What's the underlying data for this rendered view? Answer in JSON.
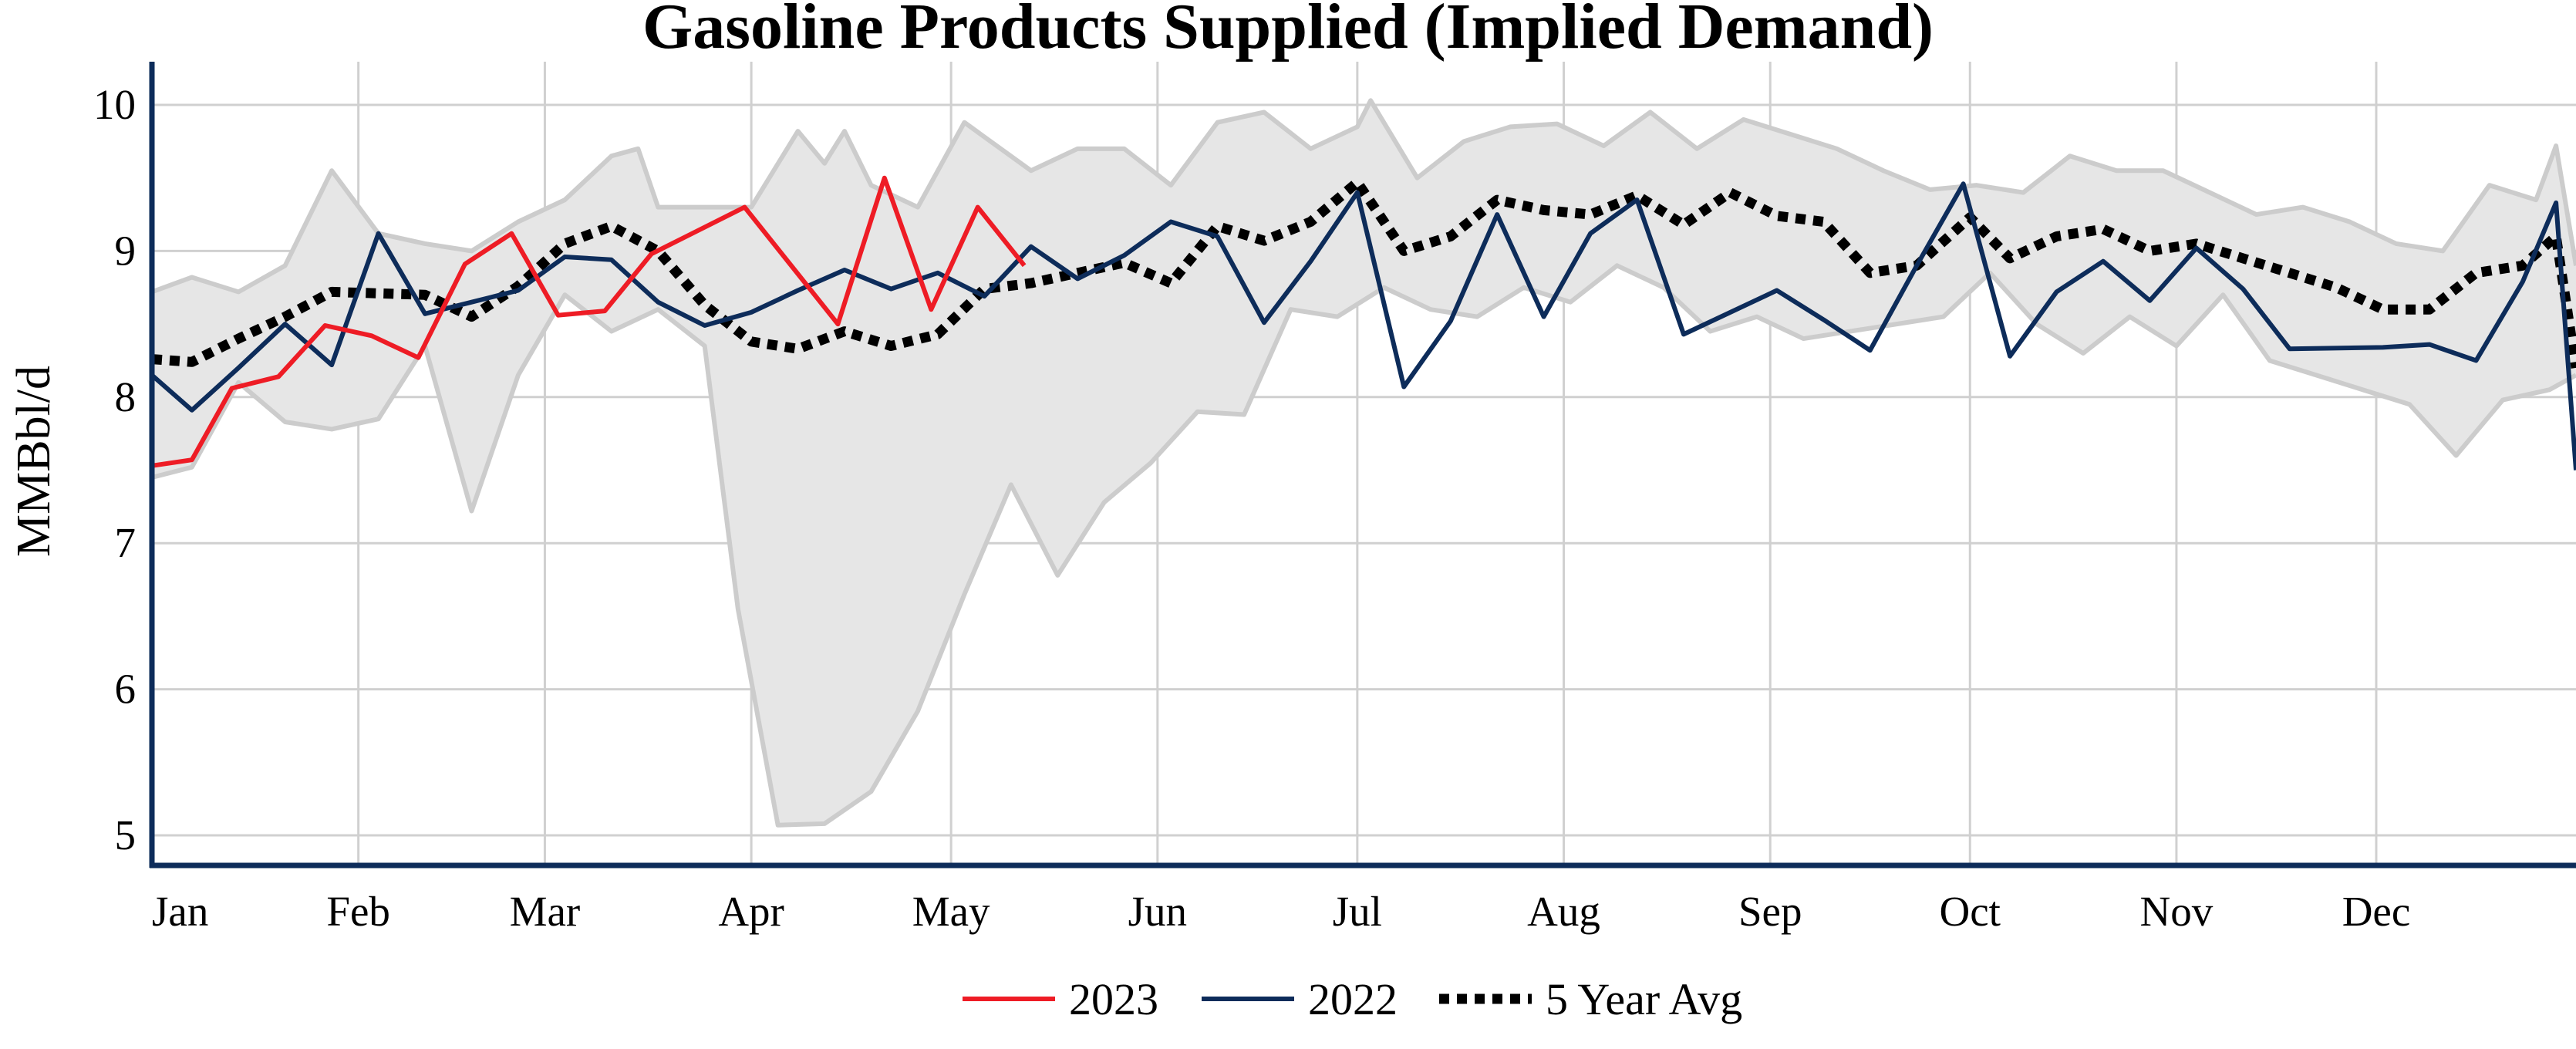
{
  "chart_data": {
    "type": "line",
    "title": "Gasoline Products Supplied (Implied Demand)",
    "xlabel": "",
    "ylabel": "MMBbl/d",
    "x_tick_labels": [
      "Jan",
      "Feb",
      "Mar",
      "Apr",
      "May",
      "Jun",
      "Jul",
      "Aug",
      "Sep",
      "Oct",
      "Nov",
      "Dec"
    ],
    "y_ticks": [
      5,
      6,
      7,
      8,
      9,
      10
    ],
    "ylim": [
      4.75,
      10.3
    ],
    "xlim_day_of_year": [
      1,
      365
    ],
    "grid": true,
    "legend": "bottom-center",
    "series": [
      {
        "name": "2023",
        "color": "#ee1c25",
        "style": "solid",
        "points": [
          {
            "x": "Jan 1",
            "y": 7.53
          },
          {
            "x": "Jan 7",
            "y": 7.57
          },
          {
            "x": "Jan 13",
            "y": 8.06
          },
          {
            "x": "Jan 20",
            "y": 8.14
          },
          {
            "x": "Jan 27",
            "y": 8.49
          },
          {
            "x": "Feb 3",
            "y": 8.42
          },
          {
            "x": "Feb 10",
            "y": 8.27
          },
          {
            "x": "Feb 17",
            "y": 8.91
          },
          {
            "x": "Feb 24",
            "y": 9.12
          },
          {
            "x": "Mar 3",
            "y": 8.56
          },
          {
            "x": "Mar 10",
            "y": 8.59
          },
          {
            "x": "Mar 17",
            "y": 8.98
          },
          {
            "x": "Mar 31",
            "y": 9.3
          },
          {
            "x": "Apr 14",
            "y": 8.5
          },
          {
            "x": "Apr 21",
            "y": 9.5
          },
          {
            "x": "Apr 28",
            "y": 8.6
          },
          {
            "x": "May 5",
            "y": 9.3
          },
          {
            "x": "May 12",
            "y": 8.9
          }
        ]
      },
      {
        "name": "2022",
        "color": "#0d2c5a",
        "style": "solid",
        "points": [
          {
            "x": "Jan 1",
            "y": 8.15
          },
          {
            "x": "Jan 7",
            "y": 7.91
          },
          {
            "x": "Jan 14",
            "y": 8.2
          },
          {
            "x": "Jan 21",
            "y": 8.5
          },
          {
            "x": "Jan 28",
            "y": 8.22
          },
          {
            "x": "Feb 4",
            "y": 9.12
          },
          {
            "x": "Feb 11",
            "y": 8.57
          },
          {
            "x": "Feb 18",
            "y": 8.65
          },
          {
            "x": "Feb 25",
            "y": 8.73
          },
          {
            "x": "Mar 4",
            "y": 8.96
          },
          {
            "x": "Mar 11",
            "y": 8.94
          },
          {
            "x": "Mar 18",
            "y": 8.65
          },
          {
            "x": "Mar 25",
            "y": 8.49
          },
          {
            "x": "Apr 1",
            "y": 8.58
          },
          {
            "x": "Apr 8",
            "y": 8.73
          },
          {
            "x": "Apr 15",
            "y": 8.87
          },
          {
            "x": "Apr 22",
            "y": 8.74
          },
          {
            "x": "Apr 29",
            "y": 8.85
          },
          {
            "x": "May 6",
            "y": 8.69
          },
          {
            "x": "May 13",
            "y": 9.03
          },
          {
            "x": "May 20",
            "y": 8.81
          },
          {
            "x": "May 27",
            "y": 8.97
          },
          {
            "x": "Jun 3",
            "y": 9.2
          },
          {
            "x": "Jun 10",
            "y": 9.1
          },
          {
            "x": "Jun 17",
            "y": 8.51
          },
          {
            "x": "Jun 24",
            "y": 8.93
          },
          {
            "x": "Jul 1",
            "y": 9.4
          },
          {
            "x": "Jul 8",
            "y": 8.07
          },
          {
            "x": "Jul 15",
            "y": 8.52
          },
          {
            "x": "Jul 22",
            "y": 9.25
          },
          {
            "x": "Jul 29",
            "y": 8.55
          },
          {
            "x": "Aug 5",
            "y": 9.12
          },
          {
            "x": "Aug 12",
            "y": 9.35
          },
          {
            "x": "Aug 19",
            "y": 8.43
          },
          {
            "x": "Sep 2",
            "y": 8.73
          },
          {
            "x": "Sep 9",
            "y": 8.53
          },
          {
            "x": "Sep 16",
            "y": 8.32
          },
          {
            "x": "Sep 23",
            "y": 8.9
          },
          {
            "x": "Sep 30",
            "y": 9.46
          },
          {
            "x": "Oct 7",
            "y": 8.28
          },
          {
            "x": "Oct 14",
            "y": 8.72
          },
          {
            "x": "Oct 21",
            "y": 8.93
          },
          {
            "x": "Oct 28",
            "y": 8.66
          },
          {
            "x": "Nov 4",
            "y": 9.02
          },
          {
            "x": "Nov 11",
            "y": 8.74
          },
          {
            "x": "Nov 18",
            "y": 8.33
          },
          {
            "x": "Dec 2",
            "y": 8.34
          },
          {
            "x": "Dec 9",
            "y": 8.36
          },
          {
            "x": "Dec 16",
            "y": 8.25
          },
          {
            "x": "Dec 23",
            "y": 8.79
          },
          {
            "x": "Dec 28",
            "y": 9.33
          },
          {
            "x": "Dec 31",
            "y": 7.5
          }
        ]
      },
      {
        "name": "5 Year Avg",
        "color": "#000000",
        "style": "dotted",
        "points": [
          {
            "x": "Jan 1",
            "y": 8.26
          },
          {
            "x": "Jan 7",
            "y": 8.24
          },
          {
            "x": "Jan 14",
            "y": 8.4
          },
          {
            "x": "Jan 21",
            "y": 8.55
          },
          {
            "x": "Jan 28",
            "y": 8.72
          },
          {
            "x": "Feb 4",
            "y": 8.71
          },
          {
            "x": "Feb 11",
            "y": 8.7
          },
          {
            "x": "Feb 18",
            "y": 8.55
          },
          {
            "x": "Feb 25",
            "y": 8.76
          },
          {
            "x": "Mar 4",
            "y": 9.05
          },
          {
            "x": "Mar 11",
            "y": 9.17
          },
          {
            "x": "Mar 18",
            "y": 9.0
          },
          {
            "x": "Mar 25",
            "y": 8.63
          },
          {
            "x": "Apr 1",
            "y": 8.38
          },
          {
            "x": "Apr 8",
            "y": 8.33
          },
          {
            "x": "Apr 15",
            "y": 8.45
          },
          {
            "x": "Apr 22",
            "y": 8.35
          },
          {
            "x": "Apr 29",
            "y": 8.43
          },
          {
            "x": "May 6",
            "y": 8.74
          },
          {
            "x": "May 13",
            "y": 8.78
          },
          {
            "x": "May 20",
            "y": 8.85
          },
          {
            "x": "May 27",
            "y": 8.92
          },
          {
            "x": "Jun 3",
            "y": 8.78
          },
          {
            "x": "Jun 10",
            "y": 9.17
          },
          {
            "x": "Jun 17",
            "y": 9.07
          },
          {
            "x": "Jun 24",
            "y": 9.2
          },
          {
            "x": "Jul 1",
            "y": 9.47
          },
          {
            "x": "Jul 8",
            "y": 9.0
          },
          {
            "x": "Jul 15",
            "y": 9.1
          },
          {
            "x": "Jul 22",
            "y": 9.35
          },
          {
            "x": "Jul 29",
            "y": 9.28
          },
          {
            "x": "Aug 5",
            "y": 9.25
          },
          {
            "x": "Aug 12",
            "y": 9.38
          },
          {
            "x": "Aug 19",
            "y": 9.18
          },
          {
            "x": "Aug 26",
            "y": 9.4
          },
          {
            "x": "Sep 2",
            "y": 9.24
          },
          {
            "x": "Sep 9",
            "y": 9.2
          },
          {
            "x": "Sep 16",
            "y": 8.85
          },
          {
            "x": "Sep 23",
            "y": 8.9
          },
          {
            "x": "Oct 1",
            "y": 9.23
          },
          {
            "x": "Oct 7",
            "y": 8.95
          },
          {
            "x": "Oct 14",
            "y": 9.1
          },
          {
            "x": "Oct 21",
            "y": 9.15
          },
          {
            "x": "Oct 28",
            "y": 9.0
          },
          {
            "x": "Nov 4",
            "y": 9.05
          },
          {
            "x": "Nov 11",
            "y": 8.95
          },
          {
            "x": "Nov 18",
            "y": 8.85
          },
          {
            "x": "Nov 25",
            "y": 8.75
          },
          {
            "x": "Dec 2",
            "y": 8.6
          },
          {
            "x": "Dec 9",
            "y": 8.6
          },
          {
            "x": "Dec 16",
            "y": 8.85
          },
          {
            "x": "Dec 23",
            "y": 8.9
          },
          {
            "x": "Dec 28",
            "y": 9.1
          },
          {
            "x": "Dec 31",
            "y": 8.2
          }
        ]
      }
    ],
    "range_band": {
      "fill": "#e6e6e6",
      "stroke": "#cccccc",
      "upper": [
        {
          "x": "Jan 1",
          "y": 8.72
        },
        {
          "x": "Jan 7",
          "y": 8.82
        },
        {
          "x": "Jan 14",
          "y": 8.72
        },
        {
          "x": "Jan 21",
          "y": 8.9
        },
        {
          "x": "Jan 28",
          "y": 9.55
        },
        {
          "x": "Feb 4",
          "y": 9.12
        },
        {
          "x": "Feb 11",
          "y": 9.05
        },
        {
          "x": "Feb 18",
          "y": 9.0
        },
        {
          "x": "Feb 25",
          "y": 9.2
        },
        {
          "x": "Mar 4",
          "y": 9.35
        },
        {
          "x": "Mar 11",
          "y": 9.65
        },
        {
          "x": "Mar 15",
          "y": 9.7
        },
        {
          "x": "Mar 18",
          "y": 9.3
        },
        {
          "x": "Apr 1",
          "y": 9.3
        },
        {
          "x": "Apr 8",
          "y": 9.82
        },
        {
          "x": "Apr 12",
          "y": 9.6
        },
        {
          "x": "Apr 15",
          "y": 9.82
        },
        {
          "x": "Apr 19",
          "y": 9.45
        },
        {
          "x": "Apr 26",
          "y": 9.3
        },
        {
          "x": "May 3",
          "y": 9.88
        },
        {
          "x": "May 13",
          "y": 9.55
        },
        {
          "x": "May 20",
          "y": 9.7
        },
        {
          "x": "May 27",
          "y": 9.7
        },
        {
          "x": "Jun 3",
          "y": 9.45
        },
        {
          "x": "Jun 10",
          "y": 9.88
        },
        {
          "x": "Jun 17",
          "y": 9.95
        },
        {
          "x": "Jun 24",
          "y": 9.7
        },
        {
          "x": "Jul 1",
          "y": 9.85
        },
        {
          "x": "Jul 3",
          "y": 10.03
        },
        {
          "x": "Jul 10",
          "y": 9.5
        },
        {
          "x": "Jul 17",
          "y": 9.75
        },
        {
          "x": "Jul 24",
          "y": 9.85
        },
        {
          "x": "Jul 31",
          "y": 9.87
        },
        {
          "x": "Aug 7",
          "y": 9.72
        },
        {
          "x": "Aug 14",
          "y": 9.95
        },
        {
          "x": "Aug 21",
          "y": 9.7
        },
        {
          "x": "Aug 28",
          "y": 9.9
        },
        {
          "x": "Sep 4",
          "y": 9.8
        },
        {
          "x": "Sep 11",
          "y": 9.7
        },
        {
          "x": "Sep 18",
          "y": 9.55
        },
        {
          "x": "Sep 25",
          "y": 9.42
        },
        {
          "x": "Oct 2",
          "y": 9.45
        },
        {
          "x": "Oct 9",
          "y": 9.4
        },
        {
          "x": "Oct 16",
          "y": 9.65
        },
        {
          "x": "Oct 23",
          "y": 9.55
        },
        {
          "x": "Oct 30",
          "y": 9.55
        },
        {
          "x": "Nov 6",
          "y": 9.4
        },
        {
          "x": "Nov 13",
          "y": 9.25
        },
        {
          "x": "Nov 20",
          "y": 9.3
        },
        {
          "x": "Nov 27",
          "y": 9.2
        },
        {
          "x": "Dec 4",
          "y": 9.05
        },
        {
          "x": "Dec 11",
          "y": 9.0
        },
        {
          "x": "Dec 18",
          "y": 9.45
        },
        {
          "x": "Dec 25",
          "y": 9.35
        },
        {
          "x": "Dec 28",
          "y": 9.72
        },
        {
          "x": "Dec 31",
          "y": 8.9
        }
      ],
      "lower": [
        {
          "x": "Jan 1",
          "y": 7.45
        },
        {
          "x": "Jan 7",
          "y": 7.52
        },
        {
          "x": "Jan 14",
          "y": 8.1
        },
        {
          "x": "Jan 21",
          "y": 7.83
        },
        {
          "x": "Jan 28",
          "y": 7.78
        },
        {
          "x": "Feb 4",
          "y": 7.85
        },
        {
          "x": "Feb 11",
          "y": 8.35
        },
        {
          "x": "Feb 18",
          "y": 7.22
        },
        {
          "x": "Feb 25",
          "y": 8.15
        },
        {
          "x": "Mar 4",
          "y": 8.7
        },
        {
          "x": "Mar 11",
          "y": 8.45
        },
        {
          "x": "Mar 18",
          "y": 8.6
        },
        {
          "x": "Mar 25",
          "y": 8.35
        },
        {
          "x": "Mar 30",
          "y": 6.55
        },
        {
          "x": "Apr 5",
          "y": 5.07
        },
        {
          "x": "Apr 12",
          "y": 5.08
        },
        {
          "x": "Apr 19",
          "y": 5.3
        },
        {
          "x": "Apr 26",
          "y": 5.85
        },
        {
          "x": "May 3",
          "y": 6.65
        },
        {
          "x": "May 10",
          "y": 7.4
        },
        {
          "x": "May 17",
          "y": 6.78
        },
        {
          "x": "May 24",
          "y": 7.28
        },
        {
          "x": "May 31",
          "y": 7.55
        },
        {
          "x": "Jun 7",
          "y": 7.9
        },
        {
          "x": "Jun 14",
          "y": 7.88
        },
        {
          "x": "Jun 21",
          "y": 8.6
        },
        {
          "x": "Jun 28",
          "y": 8.55
        },
        {
          "x": "Jul 5",
          "y": 8.75
        },
        {
          "x": "Jul 12",
          "y": 8.6
        },
        {
          "x": "Jul 19",
          "y": 8.55
        },
        {
          "x": "Jul 26",
          "y": 8.75
        },
        {
          "x": "Aug 2",
          "y": 8.65
        },
        {
          "x": "Aug 9",
          "y": 8.9
        },
        {
          "x": "Aug 16",
          "y": 8.75
        },
        {
          "x": "Aug 23",
          "y": 8.45
        },
        {
          "x": "Aug 30",
          "y": 8.55
        },
        {
          "x": "Sep 6",
          "y": 8.4
        },
        {
          "x": "Sep 13",
          "y": 8.45
        },
        {
          "x": "Sep 20",
          "y": 8.5
        },
        {
          "x": "Sep 27",
          "y": 8.55
        },
        {
          "x": "Oct 4",
          "y": 8.85
        },
        {
          "x": "Oct 11",
          "y": 8.5
        },
        {
          "x": "Oct 18",
          "y": 8.3
        },
        {
          "x": "Oct 25",
          "y": 8.55
        },
        {
          "x": "Nov 1",
          "y": 8.35
        },
        {
          "x": "Nov 8",
          "y": 8.7
        },
        {
          "x": "Nov 15",
          "y": 8.25
        },
        {
          "x": "Nov 22",
          "y": 8.15
        },
        {
          "x": "Nov 29",
          "y": 8.05
        },
        {
          "x": "Dec 6",
          "y": 7.95
        },
        {
          "x": "Dec 13",
          "y": 7.6
        },
        {
          "x": "Dec 20",
          "y": 7.98
        },
        {
          "x": "Dec 27",
          "y": 8.05
        },
        {
          "x": "Dec 31",
          "y": 8.15
        }
      ]
    }
  }
}
